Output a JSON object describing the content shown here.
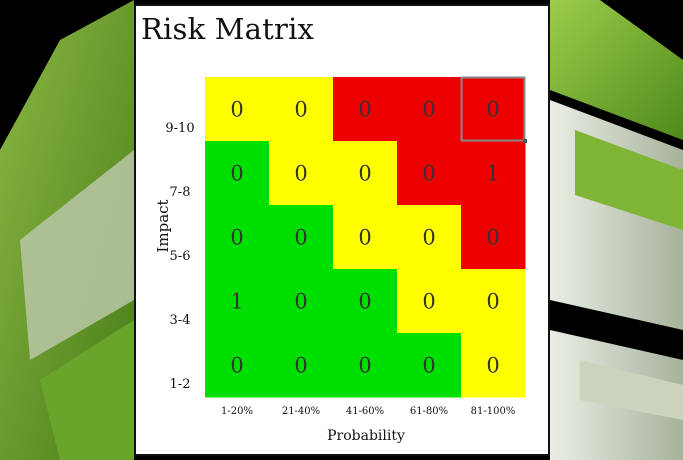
{
  "title": "Risk Matrix",
  "colors": {
    "green": "#00e000",
    "yellow": "#ffff00",
    "red": "#ee0000"
  },
  "chart_data": {
    "type": "heatmap",
    "title": "Risk Matrix",
    "xlabel": "Probability",
    "ylabel": "Impact",
    "x_categories": [
      "1-20%",
      "21-40%",
      "41-60%",
      "61-80%",
      "81-100%"
    ],
    "y_categories": [
      "9-10",
      "7-8",
      "5-6",
      "3-4",
      "1-2"
    ],
    "values": [
      [
        0,
        0,
        0,
        0,
        0
      ],
      [
        0,
        0,
        0,
        0,
        1
      ],
      [
        0,
        0,
        0,
        0,
        0
      ],
      [
        1,
        0,
        0,
        0,
        0
      ],
      [
        0,
        0,
        0,
        0,
        0
      ]
    ],
    "cell_colors": [
      [
        "yellow",
        "yellow",
        "red",
        "red",
        "red"
      ],
      [
        "green",
        "yellow",
        "yellow",
        "red",
        "red"
      ],
      [
        "green",
        "green",
        "yellow",
        "yellow",
        "red"
      ],
      [
        "green",
        "green",
        "green",
        "yellow",
        "yellow"
      ],
      [
        "green",
        "green",
        "green",
        "green",
        "yellow"
      ]
    ],
    "selected_cell": {
      "row": "9-10",
      "column": "81-100%"
    }
  }
}
